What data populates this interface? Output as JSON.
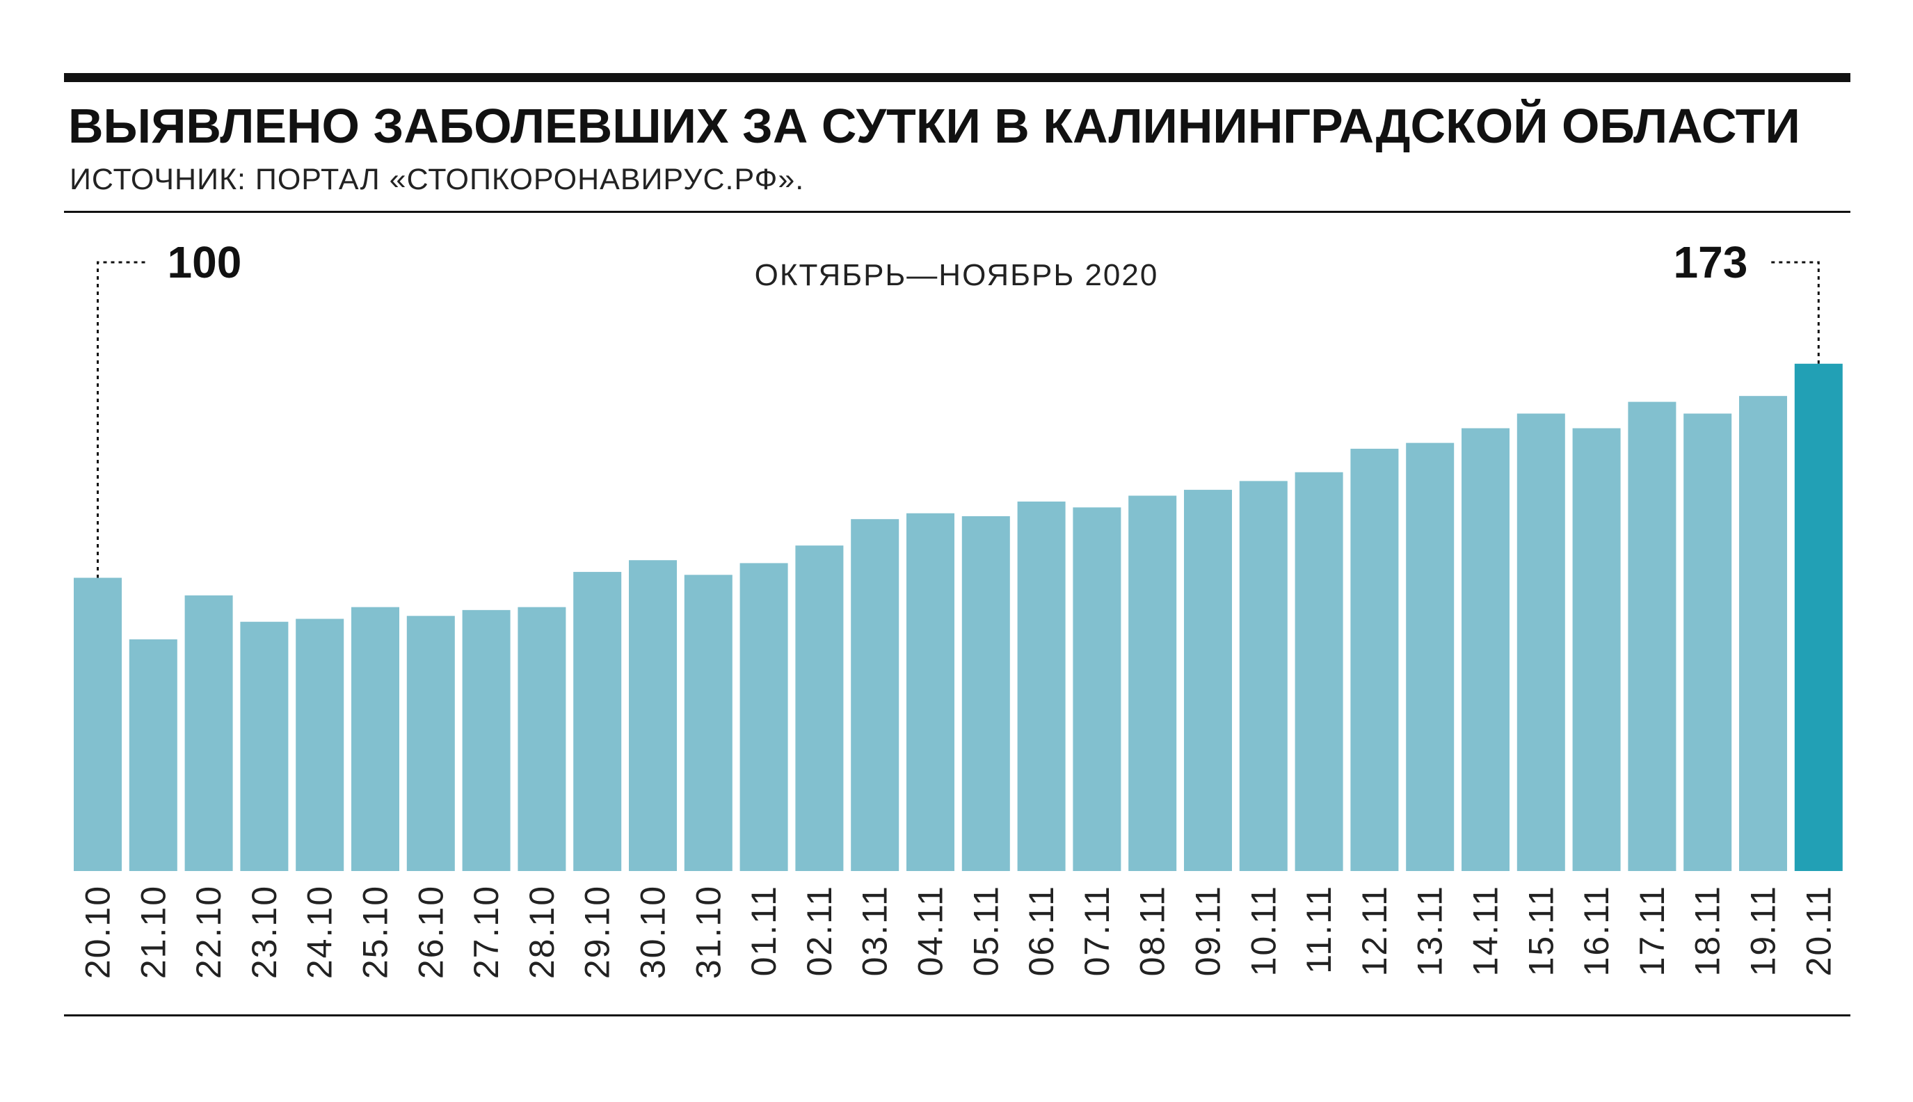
{
  "header": {
    "title_regular": "ВЫЯВЛЕНО ЗАБОЛЕВШИХ ЗА СУТКИ В ",
    "title_bold": "КАЛИНИНГРАДСКОЙ ОБЛАСТИ",
    "source": "ИСТОЧНИК: ПОРТАЛ «СТОПКОРОНАВИРУС.РФ»."
  },
  "chart_data": {
    "type": "bar",
    "title": "ВЫЯВЛЕНО ЗАБОЛЕВШИХ ЗА СУТКИ В КАЛИНИНГРАДСКОЙ ОБЛАСТИ",
    "subtitle": "ОКТЯБРЬ—НОЯБРЬ 2020",
    "xlabel": "",
    "ylabel": "",
    "ylim": [
      0,
      173
    ],
    "grid": false,
    "categories": [
      "20.10",
      "21.10",
      "22.10",
      "23.10",
      "24.10",
      "25.10",
      "26.10",
      "27.10",
      "28.10",
      "29.10",
      "30.10",
      "31.10",
      "01.11",
      "02.11",
      "03.11",
      "04.11",
      "05.11",
      "06.11",
      "07.11",
      "08.11",
      "09.11",
      "10.11",
      "11.11",
      "12.11",
      "13.11",
      "14.11",
      "15.11",
      "16.11",
      "17.11",
      "18.11",
      "19.11",
      "20.11"
    ],
    "values": [
      100,
      79,
      94,
      85,
      86,
      90,
      87,
      89,
      90,
      102,
      106,
      101,
      105,
      111,
      120,
      122,
      121,
      126,
      124,
      128,
      130,
      133,
      136,
      144,
      146,
      151,
      156,
      151,
      160,
      156,
      162,
      173
    ],
    "annotations": [
      {
        "category": "20.10",
        "label": "100"
      },
      {
        "category": "20.11",
        "label": "173"
      }
    ],
    "colors": {
      "bar": "#82c0cf",
      "highlight": "#22a0b5",
      "rule": "#111111"
    }
  }
}
